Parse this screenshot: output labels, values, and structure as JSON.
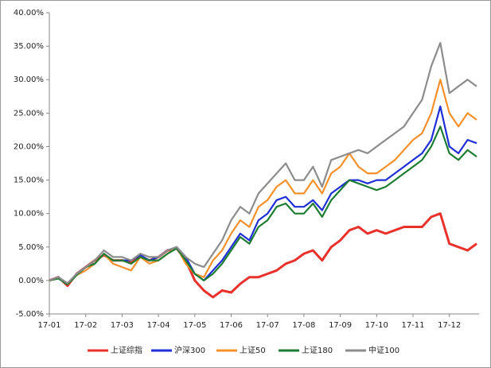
{
  "chart_data": {
    "type": "line",
    "categories": [
      "17-01",
      null,
      null,
      null,
      "17-02",
      null,
      null,
      null,
      "17-03",
      null,
      null,
      null,
      "17-04",
      null,
      null,
      null,
      "17-05",
      null,
      null,
      null,
      "17-06",
      null,
      null,
      null,
      "17-07",
      null,
      null,
      null,
      "17-08",
      null,
      null,
      null,
      "17-09",
      null,
      null,
      null,
      "17-10",
      null,
      null,
      null,
      "17-11",
      null,
      null,
      null,
      "17-12",
      null,
      null,
      null
    ],
    "series": [
      {
        "name": "上证综指",
        "color": "#e8312a",
        "values": [
          0,
          0.5,
          -0.8,
          1.0,
          2,
          3,
          3.8,
          3,
          3,
          2.8,
          3.5,
          3,
          3.5,
          4.5,
          4.8,
          3,
          0,
          -1.5,
          -2.5,
          -1.5,
          -1.8,
          -0.5,
          0.5,
          0.5,
          1,
          1.5,
          2.5,
          3,
          4,
          4.5,
          3,
          5,
          6,
          7.5,
          8,
          7,
          7.5,
          7,
          7.5,
          8,
          8,
          8,
          9.5,
          10,
          5.5,
          5,
          4.5,
          5.5
        ]
      },
      {
        "name": "沪深300",
        "color": "#1f2fd6",
        "values": [
          0,
          0.5,
          -0.5,
          1,
          2,
          2.5,
          4,
          3,
          3,
          3,
          3.8,
          3,
          3.5,
          4.5,
          5,
          3.5,
          1,
          0,
          1.5,
          3,
          5,
          7,
          6,
          9,
          10,
          12,
          12.5,
          11,
          11,
          12,
          10.5,
          13,
          14,
          15,
          15,
          14.5,
          15,
          15,
          16,
          17,
          18,
          19,
          21,
          26,
          20,
          19,
          21,
          20.5
        ]
      },
      {
        "name": "上证50",
        "color": "#f5902a",
        "values": [
          0,
          0.3,
          -0.5,
          0.8,
          1.5,
          2.5,
          4,
          2.5,
          2,
          1.5,
          3.5,
          2.5,
          3,
          4,
          5,
          2.5,
          1,
          0.5,
          3,
          4.5,
          7,
          9,
          8,
          11,
          12,
          14,
          15,
          13,
          13,
          15,
          13,
          16,
          17,
          19,
          17,
          16,
          16,
          17,
          18,
          19.5,
          21,
          22,
          25,
          30,
          25,
          23,
          25,
          24
        ]
      },
      {
        "name": "上证180",
        "color": "#1e7d32",
        "values": [
          0,
          0.3,
          -0.6,
          0.8,
          2,
          2.5,
          4,
          3,
          3,
          2.5,
          3.5,
          3,
          3,
          4,
          4.8,
          3,
          1,
          0,
          1,
          2.5,
          4.5,
          6.5,
          5.5,
          8,
          9,
          11,
          11.5,
          10,
          10,
          11.5,
          9.5,
          12,
          13.5,
          15,
          14.5,
          14,
          13.5,
          14,
          15,
          16,
          17,
          18,
          20,
          23,
          19,
          18,
          19.5,
          18.5
        ]
      },
      {
        "name": "中证100",
        "color": "#8c8c8c",
        "values": [
          0,
          0.5,
          -0.4,
          1,
          2,
          3,
          4.5,
          3.5,
          3.5,
          3,
          4,
          3.5,
          3.5,
          4.5,
          5,
          3.5,
          2.5,
          2,
          4,
          6,
          9,
          11,
          10,
          13,
          14.5,
          16,
          17.5,
          15,
          15,
          17,
          14,
          18,
          18.5,
          19,
          19.5,
          19,
          20,
          21,
          22,
          23,
          25,
          27,
          32,
          35.5,
          28,
          29,
          30,
          29
        ]
      }
    ],
    "ylim": [
      -5,
      40
    ],
    "yticks": [
      {
        "value": -5,
        "label": "-5.00%"
      },
      {
        "value": 0,
        "label": "0.00%"
      },
      {
        "value": 5,
        "label": "5.00%"
      },
      {
        "value": 10,
        "label": "10.00%"
      },
      {
        "value": 15,
        "label": "15.00%"
      },
      {
        "value": 20,
        "label": "20.00%"
      },
      {
        "value": 25,
        "label": "25.00%"
      },
      {
        "value": 30,
        "label": "30.00%"
      },
      {
        "value": 35,
        "label": "35.00%"
      },
      {
        "value": 40,
        "label": "40.00%"
      }
    ],
    "legend": "bottom"
  }
}
